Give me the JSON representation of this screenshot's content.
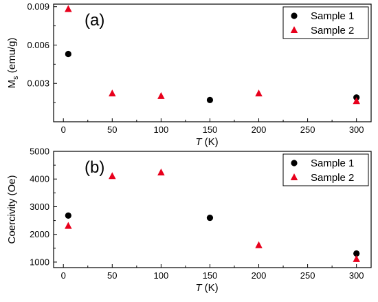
{
  "chart_data": [
    {
      "type": "scatter",
      "panel_label": "(a)",
      "xlabel": {
        "italic": "T",
        "unit": " (K)"
      },
      "ylabel": {
        "main": "M",
        "sub": "s",
        "unit": " (emu/g)"
      },
      "xlim": [
        -10,
        315
      ],
      "ylim": [
        0,
        0.0092
      ],
      "xticks": [
        0,
        50,
        100,
        150,
        200,
        250,
        300
      ],
      "xtick_labels": [
        "0",
        "50",
        "100",
        "150",
        "200",
        "250",
        "300"
      ],
      "yticks": [
        0.003,
        0.006,
        0.009
      ],
      "ytick_labels": [
        "0.003",
        "0.006",
        "0.009"
      ],
      "legend_position": "top-right",
      "series": [
        {
          "name": "Sample 1",
          "marker": "circle",
          "color": "#000000",
          "x": [
            5,
            150,
            300
          ],
          "y": [
            0.0053,
            0.0017,
            0.0019
          ]
        },
        {
          "name": "Sample 2",
          "marker": "triangle",
          "color": "#e8001c",
          "x": [
            5,
            50,
            100,
            200,
            300
          ],
          "y": [
            0.0088,
            0.0022,
            0.002,
            0.0022,
            0.0016
          ]
        }
      ]
    },
    {
      "type": "scatter",
      "panel_label": "(b)",
      "xlabel": {
        "italic": "T",
        "unit": " (K)"
      },
      "ylabel": {
        "main": "Coercivity",
        "sub": "",
        "unit": " (Oe)"
      },
      "xlim": [
        -10,
        315
      ],
      "ylim": [
        800,
        5000
      ],
      "xticks": [
        0,
        50,
        100,
        150,
        200,
        250,
        300
      ],
      "xtick_labels": [
        "0",
        "50",
        "100",
        "150",
        "200",
        "250",
        "300"
      ],
      "yticks": [
        1000,
        2000,
        3000,
        4000,
        5000
      ],
      "ytick_labels": [
        "1000",
        "2000",
        "3000",
        "4000",
        "5000"
      ],
      "legend_position": "top-right",
      "series": [
        {
          "name": "Sample 1",
          "marker": "circle",
          "color": "#000000",
          "x": [
            5,
            150,
            300
          ],
          "y": [
            2680,
            2600,
            1310
          ]
        },
        {
          "name": "Sample 2",
          "marker": "triangle",
          "color": "#e8001c",
          "x": [
            5,
            50,
            100,
            200,
            300
          ],
          "y": [
            2300,
            4100,
            4230,
            1600,
            1100
          ]
        }
      ]
    }
  ]
}
